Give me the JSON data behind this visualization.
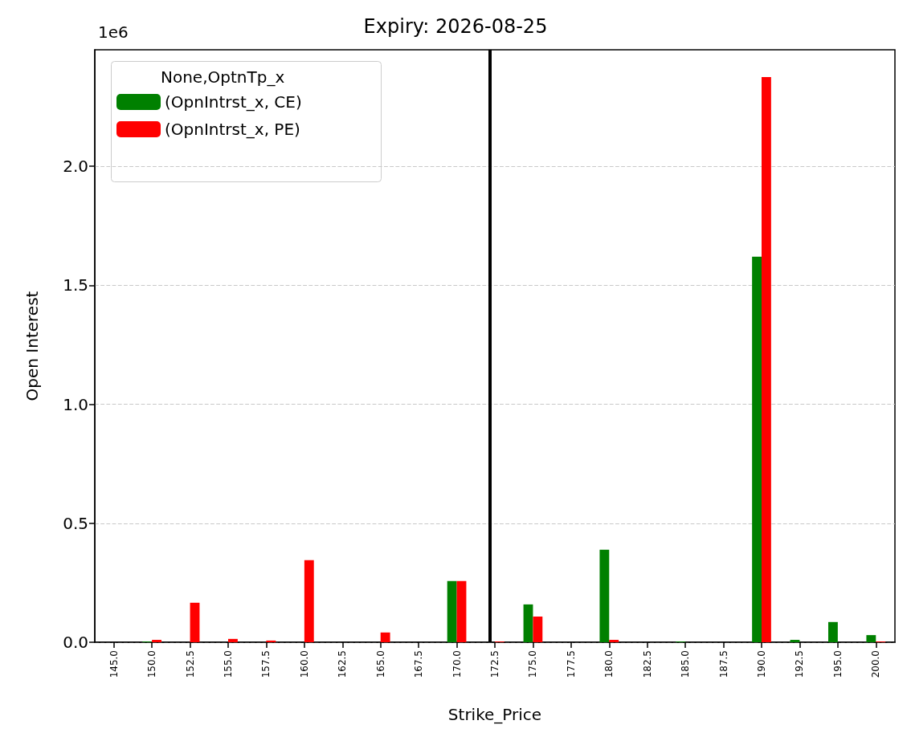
{
  "chart_data": {
    "type": "bar",
    "title": "Expiry: 2026-08-25",
    "xlabel": "Strike_Price",
    "ylabel": "Open Interest",
    "legend_title": "None,OptnTp_x",
    "categories": [
      "145.0",
      "150.0",
      "152.5",
      "155.0",
      "157.5",
      "160.0",
      "162.5",
      "165.0",
      "167.5",
      "170.0",
      "172.5",
      "175.0",
      "177.5",
      "180.0",
      "182.5",
      "185.0",
      "187.5",
      "190.0",
      "192.5",
      "195.0",
      "200.0"
    ],
    "series": [
      {
        "name": "(OpnIntrst_x, CE)",
        "color": "#008000",
        "values": [
          0,
          0.003,
          0,
          0,
          0,
          0,
          0,
          0,
          0,
          0.257,
          0,
          0.159,
          0,
          0.389,
          0,
          0.003,
          0,
          1.62,
          0.01,
          0.085,
          0.03
        ]
      },
      {
        "name": "(OpnIntrst_x, PE)",
        "color": "#ff0000",
        "values": [
          0,
          0.01,
          0.166,
          0.014,
          0.007,
          0.345,
          0,
          0.041,
          0,
          0.257,
          0.003,
          0.108,
          0,
          0.01,
          0,
          0,
          0,
          2.375,
          0,
          0,
          0.003
        ]
      }
    ],
    "ylim": [
      0,
      2.49
    ],
    "yticks": [
      {
        "value": 0,
        "label": "0.0"
      },
      {
        "value": 0.5,
        "label": "0.5"
      },
      {
        "value": 1,
        "label": "1.0"
      },
      {
        "value": 1.5,
        "label": "1.5"
      },
      {
        "value": 2,
        "label": "2.0"
      }
    ],
    "ref_lines": [
      {
        "axis": "x",
        "value": "172.5",
        "color": "#000000",
        "line_style": "solid"
      }
    ],
    "annotations": [
      "1e6"
    ],
    "grid": "y",
    "legend": "top left"
  }
}
